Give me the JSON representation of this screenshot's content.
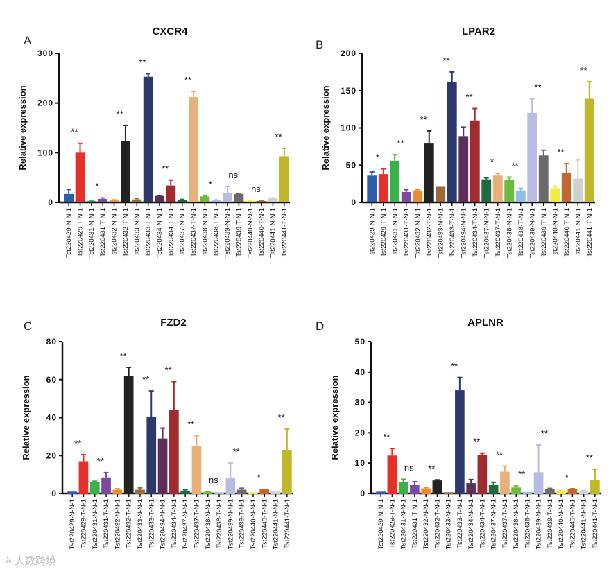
{
  "watermark": "大数跨境",
  "chart_data": [
    {
      "type": "bar",
      "panel": "A",
      "title": "CXCR4",
      "ylabel": "Relative expression",
      "ylim": [
        0,
        300
      ],
      "yticks": [
        0,
        100,
        200,
        300
      ],
      "categories": [
        "Tst220429-N-N-1",
        "Tst220429-T-N-1",
        "Tst220431-N-N-1",
        "Tst220431-T-N-1",
        "Tst220432-N-N-1",
        "Tst220432-T-N-1",
        "Tst220433-N-N-1",
        "Tst220433-T-N-1",
        "Tst220434-N-N-1",
        "Tst220434-T-N-1",
        "Tst220437-N-N-1",
        "Tst220437-T-N-1",
        "Tst220438-N-N-1",
        "Tst220438-T-N-1",
        "Tst220439-N-N-1",
        "Tst220439-T-N-1",
        "Tst220440-N-N-1",
        "Tst220440-T-N-1",
        "Tst220441-N-N-1",
        "Tst220441-T-N-1"
      ],
      "values": [
        17,
        100,
        3,
        7,
        4,
        124,
        6,
        253,
        13,
        34,
        5,
        212,
        12,
        4,
        19,
        17,
        3,
        3,
        8,
        93
      ],
      "errors": [
        9,
        19,
        1,
        2,
        1,
        31,
        2,
        6,
        1,
        11,
        1,
        11,
        1,
        1,
        13,
        1,
        1,
        1,
        1,
        16
      ],
      "significance": [
        "**",
        "*",
        "**",
        "**",
        "**",
        "**",
        "*",
        "ns",
        "ns",
        "**"
      ]
    },
    {
      "type": "bar",
      "panel": "B",
      "title": "LPAR2",
      "ylabel": "Relative expression",
      "ylim": [
        0,
        200
      ],
      "yticks": [
        0,
        50,
        100,
        150,
        200
      ],
      "categories": [
        "Tst220429-N-N-1",
        "Tst220429-T-N-1",
        "Tst220431-N-N-1",
        "Tst220431-T-N-1",
        "Tst220432-N-N-1",
        "Tst220432-T-N-1",
        "Tst220433-N-N-1",
        "Tst220433-T-N-1",
        "Tst220434-N-N-1",
        "Tst220434-T-N-1",
        "Tst220437-N-N-1",
        "Tst220437-T-N-1",
        "Tst220438-N-N-1",
        "Tst220438-T-N-1",
        "Tst220439-N-N-1",
        "Tst220439-T-N-1",
        "Tst220440-N-N-1",
        "Tst220440-T-N-1",
        "Tst220441-N-N-1",
        "Tst220441-T-N-1"
      ],
      "values": [
        36,
        38,
        56,
        14,
        16,
        79,
        21,
        161,
        89,
        110,
        31,
        36,
        30,
        16,
        120,
        63,
        19,
        40,
        32,
        139
      ],
      "errors": [
        5,
        7,
        8,
        3,
        1,
        17,
        0,
        14,
        12,
        16,
        2,
        3,
        4,
        3,
        19,
        7,
        3,
        12,
        25,
        23
      ],
      "significance": [
        "*",
        "**",
        "**",
        "**",
        "**",
        "*",
        "**",
        "**",
        "**",
        "**"
      ]
    },
    {
      "type": "bar",
      "panel": "C",
      "title": "FZD2",
      "ylabel": "Relative expression",
      "ylim": [
        0,
        80
      ],
      "yticks": [
        0,
        20,
        40,
        60,
        80
      ],
      "categories": [
        "Tst220429-N-N-1",
        "Tst220429-T-N-1",
        "Tst220431-N-N-1",
        "Tst220431-T-N-1",
        "Tst220432-N-N-1",
        "Tst220432-T-N-1",
        "Tst220433-N-N-1",
        "Tst220433-T-N-1",
        "Tst220434-N-N-1",
        "Tst220434-T-N-1",
        "Tst220437-N-N-1",
        "Tst220437-T-N-1",
        "Tst220438-N-N-1",
        "Tst220438-T-N-1",
        "Tst220439-N-N-1",
        "Tst220439-T-N-1",
        "Tst220440-N-N-1",
        "Tst220440-T-N-1",
        "Tst220441-N-N-1",
        "Tst220441-T-N-1"
      ],
      "values": [
        1,
        17,
        6,
        8.5,
        2,
        62,
        2,
        40.5,
        29,
        44,
        1.5,
        25,
        0.8,
        0.5,
        8,
        2,
        0.5,
        2.5,
        1,
        23
      ],
      "errors": [
        0,
        3.5,
        0.5,
        2.5,
        0.5,
        4.5,
        1,
        13.5,
        5.5,
        15,
        0.5,
        5.5,
        0.3,
        0,
        8,
        0.8,
        0,
        0,
        0,
        11
      ],
      "significance": [
        "**",
        "**",
        "**",
        "**",
        "**",
        "**",
        "ns",
        "**",
        "*",
        "**"
      ]
    },
    {
      "type": "bar",
      "panel": "D",
      "title": "APLNR",
      "ylabel": "Relative expression",
      "ylim": [
        0,
        50
      ],
      "yticks": [
        0,
        10,
        20,
        30,
        40,
        50
      ],
      "categories": [
        "Tst220429-N-N-1",
        "Tst220429-T-N-1",
        "Tst220431-N-N-1",
        "Tst220431-T-N-1",
        "Tst220432-N-N-1",
        "Tst220432-T-N-1",
        "Tst220433-N-N-1",
        "Tst220433-T-N-1",
        "Tst220434-N-N-1",
        "Tst220434-T-N-1",
        "Tst220437-N-N-1",
        "Tst220437-T-N-1",
        "Tst220438-N-N-1",
        "Tst220438-T-N-1",
        "Tst220439-N-N-1",
        "Tst220439-T-N-1",
        "Tst220440-N-N-1",
        "Tst220440-T-N-1",
        "Tst220441-N-N-1",
        "Tst220441-T-N-1"
      ],
      "values": [
        0.6,
        12.5,
        3.7,
        2.9,
        1.7,
        4.3,
        0.4,
        34,
        3.4,
        12.6,
        2.9,
        7.2,
        2,
        0.5,
        7,
        1.4,
        0.7,
        1.4,
        0.7,
        4.5
      ],
      "errors": [
        0,
        2.3,
        1,
        1,
        0.3,
        0.2,
        0,
        4.2,
        1.2,
        0.7,
        0.8,
        1.8,
        0.6,
        0,
        9,
        0.3,
        0.3,
        0.2,
        0.3,
        3.5
      ],
      "significance": [
        "**",
        "ns",
        "**",
        "**",
        "**",
        "**",
        "**",
        "**",
        "*",
        "**"
      ]
    }
  ],
  "colors": [
    "#2a5caa",
    "#e8302a",
    "#3cb04a",
    "#7b4a9e",
    "#f08a2e",
    "#222222",
    "#9b6b35",
    "#2b3a6b",
    "#5e2d5a",
    "#a02c30",
    "#1f6b40",
    "#eab07c",
    "#6dbb3e",
    "#8fbfe8",
    "#b8bce0",
    "#6a6a6a",
    "#f0ec40",
    "#c0682e",
    "#d0d0d0",
    "#c0b82a"
  ]
}
